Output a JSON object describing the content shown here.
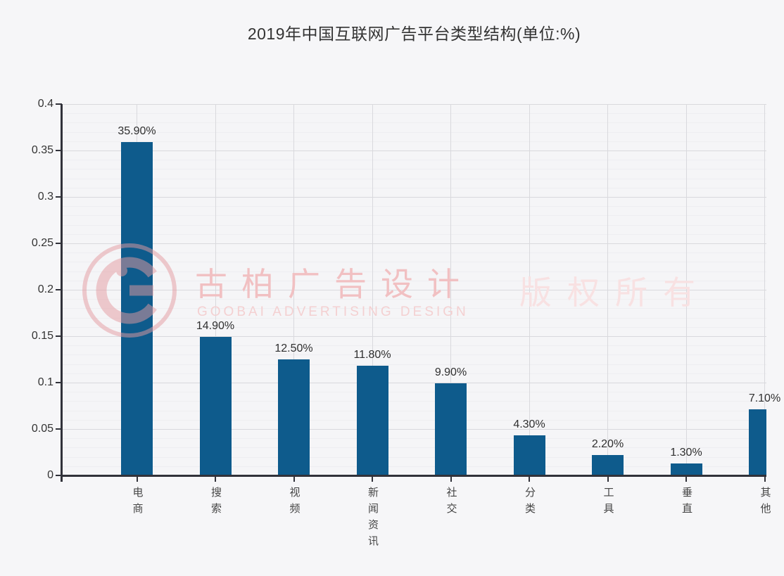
{
  "page": {
    "background": "#f6f6f8"
  },
  "chart_data": {
    "type": "bar",
    "title": "2019年中国互联网广告平台类型结构(单位:%)",
    "categories": [
      "电商",
      "搜索",
      "视频",
      "新闻资讯",
      "社交",
      "分类",
      "工具",
      "垂直",
      "其他"
    ],
    "values": [
      0.359,
      0.149,
      0.125,
      0.118,
      0.099,
      0.043,
      0.022,
      0.013,
      0.071
    ],
    "value_labels": [
      "35.90%",
      "14.90%",
      "12.50%",
      "11.80%",
      "9.90%",
      "4.30%",
      "2.20%",
      "1.30%",
      "7.10%"
    ],
    "xlabel": "",
    "ylabel": "",
    "ylim": [
      0,
      0.4
    ],
    "y_ticks": [
      0,
      0.05,
      0.1,
      0.15,
      0.2,
      0.25,
      0.3,
      0.35,
      0.4
    ],
    "y_tick_labels": [
      "0",
      "0.05",
      "0.1",
      "0.15",
      "0.2",
      "0.25",
      "0.3",
      "0.35",
      "0.4"
    ],
    "minor_grid_step": 0.01,
    "grid": "on",
    "legend": "none",
    "bar_color": "#0e5b8c",
    "value_label_color": "#2f2f2f",
    "axis_color": "#31323a",
    "grid_major_color": "#d9d9dd",
    "grid_minor_color": "#eeeef1",
    "category_label_color": "#454545"
  },
  "watermark": {
    "logo_icon": "goobai-circle-g-logo",
    "brand_cn": "古柏广告设计",
    "brand_en": "GOOBAI ADVERTISING DESIGN",
    "copyright": "版权所有",
    "color_primary": "#f1c0c2",
    "color_secondary": "#f4d0d1",
    "color_tertiary": "#f8e1e2",
    "logo_color": "#e59ba0"
  }
}
